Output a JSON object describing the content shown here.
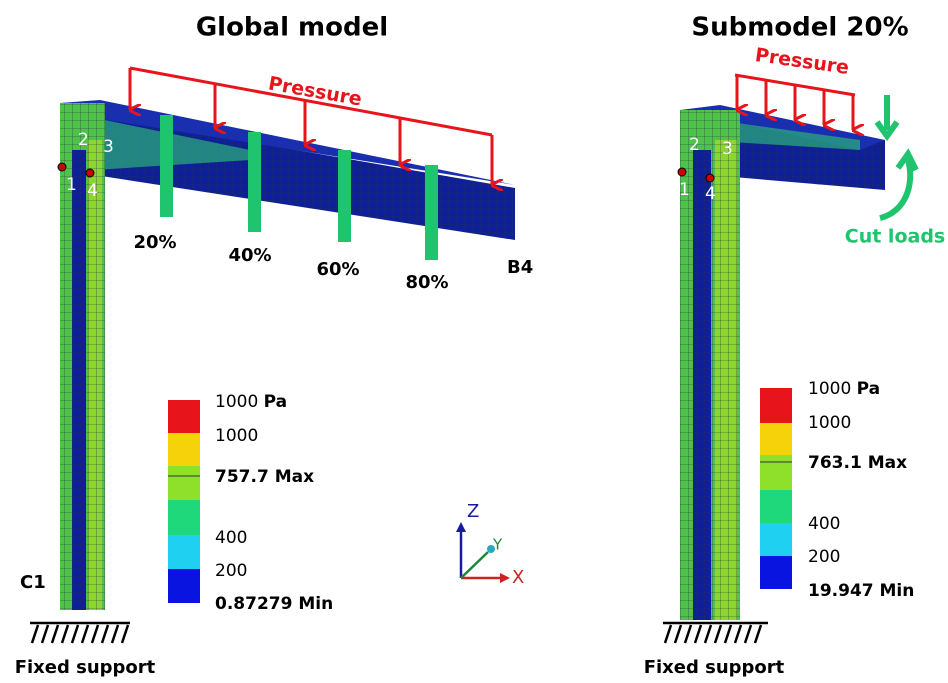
{
  "global": {
    "title": "Global model",
    "pressure": "Pressure",
    "sections": [
      "20%",
      "40%",
      "60%",
      "80%"
    ],
    "points": [
      "1",
      "2",
      "3",
      "4"
    ],
    "beam_end": "B4",
    "column_base": "C1",
    "support": "Fixed support",
    "legend": {
      "top": {
        "value": "1000",
        "unit": "Pa"
      },
      "entries": [
        "1000",
        "757.7 Max",
        "400",
        "200",
        "0.87279 Min"
      ]
    }
  },
  "axes": {
    "z": "Z",
    "y": "Y",
    "x": "X"
  },
  "submodel": {
    "title": "Submodel 20%",
    "pressure": "Pressure",
    "cut_loads": "Cut loads",
    "points": [
      "1",
      "2",
      "3",
      "4"
    ],
    "support": "Fixed support",
    "legend": {
      "top": {
        "value": "1000",
        "unit": "Pa"
      },
      "entries": [
        "1000",
        "763.1 Max",
        "400",
        "200",
        "19.947 Min"
      ]
    }
  }
}
